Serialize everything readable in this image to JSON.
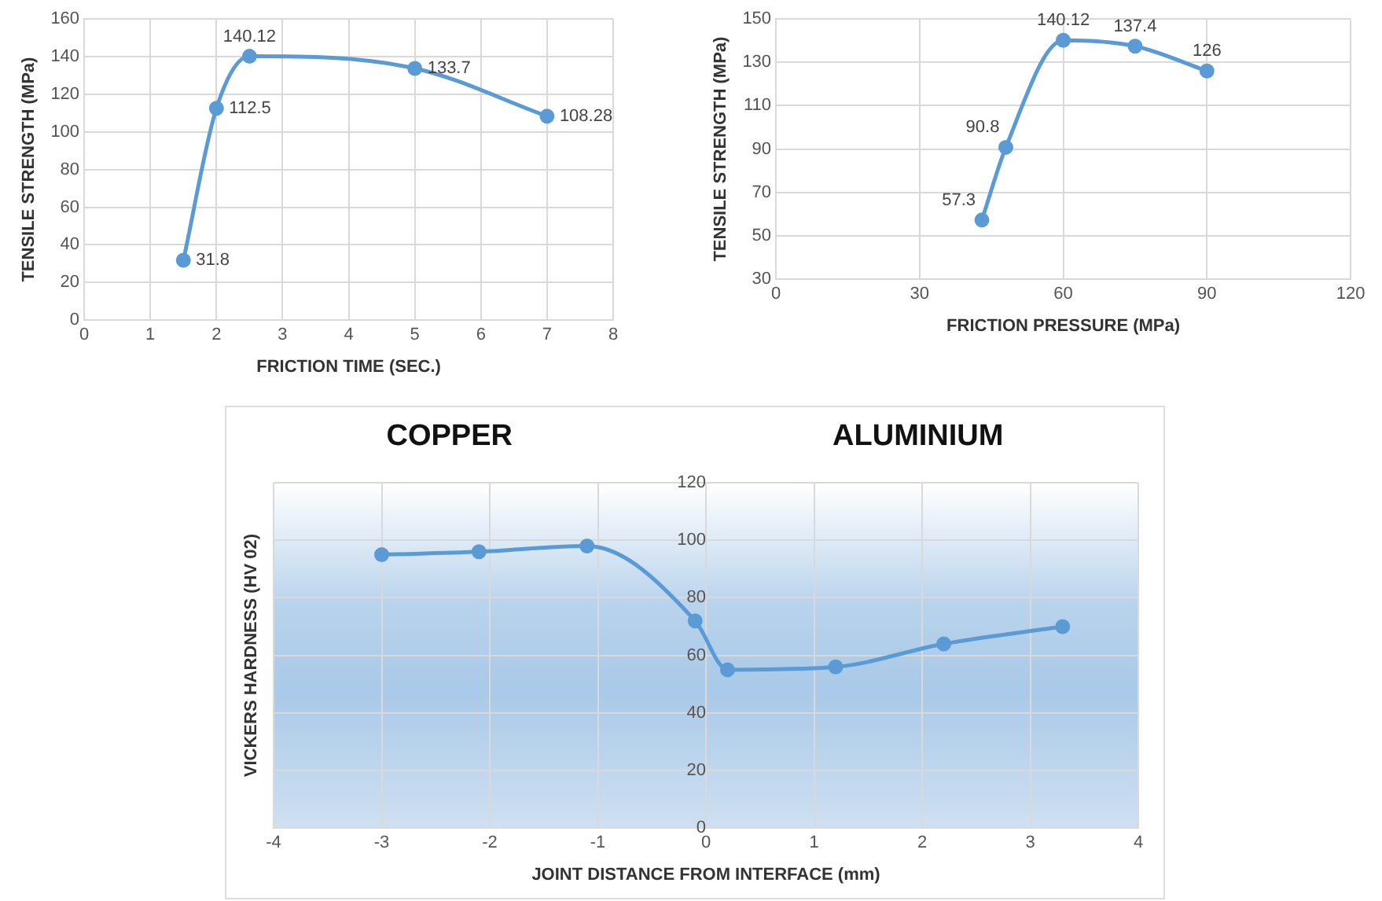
{
  "chart_data": [
    {
      "type": "line",
      "xlabel": "FRICTION TIME (SEC.)",
      "ylabel": "TENSILE STRENGTH (MPa)",
      "x": [
        1.5,
        2,
        2.5,
        5,
        7
      ],
      "series": [
        {
          "color": "#5b9bd5",
          "values": [
            31.8,
            112.5,
            140.12,
            133.7,
            108.28
          ]
        }
      ],
      "xlim": [
        0,
        8
      ],
      "xticks": [
        0,
        1,
        2,
        3,
        4,
        5,
        6,
        7,
        8
      ],
      "ylim": [
        0,
        160
      ],
      "yticks": [
        0,
        20,
        40,
        60,
        80,
        100,
        120,
        140,
        160
      ],
      "grid": true,
      "legend": false,
      "marker": "circle",
      "line_style": "solid",
      "data_labels": true
    },
    {
      "type": "line",
      "xlabel": "FRICTION PRESSURE (MPa)",
      "ylabel": "TENSILE STRENGTH (MPa)",
      "x": [
        43,
        48,
        60,
        75,
        90
      ],
      "series": [
        {
          "color": "#5b9bd5",
          "values": [
            57.3,
            90.8,
            140.12,
            137.4,
            126
          ]
        }
      ],
      "xlim": [
        0,
        120
      ],
      "xticks": [
        0,
        30,
        60,
        90,
        120
      ],
      "ylim": [
        30,
        150
      ],
      "yticks": [
        30,
        50,
        70,
        90,
        110,
        130,
        150
      ],
      "grid": true,
      "legend": false,
      "marker": "circle",
      "line_style": "solid",
      "data_labels": true
    },
    {
      "type": "line",
      "xlabel": "JOINT DISTANCE FROM INTERFACE (mm)",
      "ylabel": "VICKERS HARDNESS (HV 02)",
      "annotations": [
        "COPPER",
        "ALUMINIUM"
      ],
      "x": [
        -3,
        -2.1,
        -1.1,
        -0.1,
        0.2,
        1.2,
        2.2,
        3.3
      ],
      "series": [
        {
          "color": "#5b9bd5",
          "values": [
            95,
            96,
            98,
            72,
            55,
            56,
            64,
            70
          ]
        }
      ],
      "xlim": [
        -4,
        4
      ],
      "xticks": [
        -4,
        -3,
        -2,
        -1,
        0,
        1,
        2,
        3,
        4
      ],
      "ylim": [
        0,
        120
      ],
      "yticks": [
        0,
        20,
        40,
        60,
        80,
        100,
        120
      ],
      "grid": true,
      "legend": false,
      "marker": "circle",
      "line_style": "solid"
    }
  ]
}
